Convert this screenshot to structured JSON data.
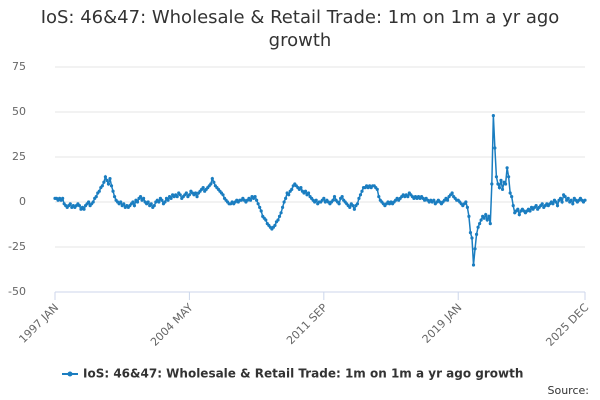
{
  "chart_data": {
    "type": "line",
    "title": "IoS: 46&47: Wholesale & Retail Trade: 1m on 1m a yr ago growth",
    "source_label": "Source:",
    "categories": [
      "1997 JAN",
      null,
      null,
      null,
      null,
      null,
      null,
      null,
      null,
      null,
      null,
      null,
      null,
      null,
      null,
      null,
      null,
      null,
      null,
      null,
      null,
      null,
      null,
      null,
      null,
      null,
      null,
      null,
      null,
      null,
      null,
      null,
      null,
      null,
      null,
      null,
      null,
      null,
      null,
      null,
      null,
      null,
      null,
      null,
      null,
      null,
      null,
      null,
      null,
      null,
      null,
      null,
      null,
      null,
      null,
      null,
      null,
      null,
      null,
      null,
      null,
      null,
      null,
      null,
      null,
      null,
      null,
      null,
      null,
      null,
      null,
      null,
      null,
      null,
      null,
      null,
      null,
      null,
      null,
      null,
      null,
      null,
      null,
      null,
      null,
      null,
      null,
      null,
      "2004 MAY",
      null,
      null,
      null,
      null,
      null,
      null,
      null,
      null,
      null,
      null,
      null,
      null,
      null,
      null,
      null,
      null,
      null,
      null,
      null,
      null,
      null,
      null,
      null,
      null,
      null,
      null,
      null,
      null,
      null,
      null,
      null,
      null,
      null,
      null,
      null,
      null,
      null,
      null,
      null,
      null,
      null,
      null,
      null,
      null,
      null,
      null,
      null,
      null,
      null,
      null,
      null,
      null,
      null,
      null,
      null,
      null,
      null,
      null,
      null,
      null,
      null,
      null,
      null,
      null,
      null,
      null,
      null,
      null,
      null,
      null,
      null,
      null,
      null,
      null,
      null,
      null,
      null,
      null,
      null,
      null,
      null,
      null,
      null,
      null,
      null,
      null,
      null,
      "2011 SEP",
      null,
      null,
      null,
      null,
      null,
      null,
      null,
      null,
      null,
      null,
      null,
      null,
      null,
      null,
      null,
      null,
      null,
      null,
      null,
      null,
      null,
      null,
      null,
      null,
      null,
      null,
      null,
      null,
      null,
      null,
      null,
      null,
      null,
      null,
      null,
      null,
      null,
      null,
      null,
      null,
      null,
      null,
      null,
      null,
      null,
      null,
      null,
      null,
      null,
      null,
      null,
      null,
      null,
      null,
      null,
      null,
      null,
      null,
      null,
      null,
      null,
      null,
      null,
      null,
      null,
      null,
      null,
      null,
      null,
      null,
      null,
      null,
      null,
      null,
      null,
      null,
      null,
      null,
      null,
      null,
      null,
      null,
      null,
      null,
      null,
      null,
      null,
      "2019 JAN",
      null,
      null,
      null,
      null,
      null,
      null,
      null,
      null,
      null,
      null,
      null,
      null,
      null,
      null,
      null,
      null,
      null,
      null,
      null,
      null,
      null,
      null,
      null,
      null,
      null,
      null,
      null,
      null,
      null,
      null,
      null,
      null,
      null,
      null,
      null,
      null,
      null,
      null,
      null,
      null,
      null,
      null,
      null,
      null,
      null,
      null,
      null,
      null,
      null,
      null,
      null,
      null,
      null,
      null,
      null,
      null,
      null,
      null,
      null,
      null,
      null,
      null,
      null,
      null,
      null,
      null,
      null,
      null,
      null,
      null,
      null,
      null,
      null,
      null,
      null,
      null,
      null,
      null,
      null,
      null,
      null,
      null,
      "2025 DEC"
    ],
    "series": [
      {
        "name": "IoS: 46&47: Wholesale & Retail Trade: 1m on 1m a yr ago growth",
        "color": "#1a7dc0",
        "values": [
          2,
          2,
          1,
          2,
          1,
          2,
          -1,
          -2,
          -3,
          -2,
          -1,
          -3,
          -2,
          -3,
          -2,
          -1,
          -2,
          -4,
          -3,
          -4,
          -2,
          -1,
          0,
          -2,
          -1,
          0,
          2,
          3,
          5,
          6,
          8,
          9,
          11,
          14,
          12,
          10,
          13,
          9,
          6,
          3,
          1,
          0,
          -1,
          0,
          -2,
          -1,
          -3,
          -2,
          -3,
          -2,
          -1,
          0,
          -2,
          1,
          0,
          2,
          3,
          1,
          2,
          0,
          -1,
          0,
          -2,
          -1,
          -3,
          -2,
          0,
          1,
          0,
          2,
          1,
          -1,
          0,
          2,
          1,
          3,
          2,
          4,
          3,
          4,
          3,
          5,
          4,
          2,
          3,
          4,
          5,
          3,
          4,
          6,
          5,
          4,
          5,
          3,
          5,
          6,
          7,
          8,
          6,
          7,
          8,
          9,
          10,
          13,
          11,
          9,
          8,
          7,
          6,
          5,
          4,
          2,
          1,
          0,
          -1,
          -1,
          0,
          -1,
          0,
          1,
          0,
          1,
          1,
          2,
          1,
          0,
          1,
          2,
          1,
          3,
          2,
          3,
          1,
          -1,
          -3,
          -5,
          -8,
          -9,
          -10,
          -12,
          -13,
          -14,
          -15,
          -14,
          -13,
          -11,
          -10,
          -8,
          -6,
          -3,
          0,
          2,
          5,
          4,
          6,
          7,
          9,
          10,
          9,
          8,
          7,
          8,
          6,
          5,
          6,
          4,
          5,
          3,
          2,
          1,
          0,
          1,
          -1,
          0,
          0,
          1,
          2,
          0,
          1,
          0,
          -1,
          0,
          1,
          3,
          1,
          0,
          -1,
          2,
          3,
          1,
          0,
          -1,
          -2,
          -3,
          -1,
          -2,
          -4,
          -2,
          -1,
          2,
          4,
          6,
          8,
          8,
          9,
          8,
          9,
          8,
          9,
          9,
          8,
          7,
          3,
          1,
          0,
          -1,
          -2,
          -1,
          0,
          -1,
          0,
          -1,
          0,
          1,
          2,
          1,
          2,
          3,
          4,
          3,
          4,
          3,
          5,
          4,
          3,
          2,
          3,
          2,
          3,
          2,
          3,
          2,
          1,
          2,
          1,
          0,
          1,
          0,
          1,
          -1,
          0,
          1,
          0,
          -1,
          0,
          1,
          2,
          1,
          3,
          4,
          5,
          3,
          2,
          1,
          1,
          0,
          -1,
          -2,
          -1,
          0,
          -3,
          -8,
          -17,
          -20,
          -35,
          -26,
          -18,
          -14,
          -12,
          -10,
          -8,
          -9,
          -7,
          -10,
          -8,
          -12,
          10,
          48,
          30,
          14,
          10,
          8,
          12,
          7,
          11,
          10,
          19,
          14,
          5,
          3,
          -2,
          -6,
          -5,
          -4,
          -7,
          -5,
          -4,
          -5,
          -6,
          -5,
          -4,
          -5,
          -3,
          -4,
          -3,
          -2,
          -4,
          -3,
          -2,
          -1,
          -3,
          -2,
          -1,
          -2,
          -1,
          0,
          -1,
          1,
          0,
          -2,
          1,
          2,
          0,
          4,
          3,
          1,
          2,
          0,
          1,
          -1,
          2,
          1,
          0,
          1,
          2,
          1,
          0,
          1
        ]
      }
    ],
    "ylim": [
      -50,
      75
    ],
    "yticks": [
      -50,
      -25,
      0,
      25,
      50,
      75
    ],
    "grid": true
  }
}
